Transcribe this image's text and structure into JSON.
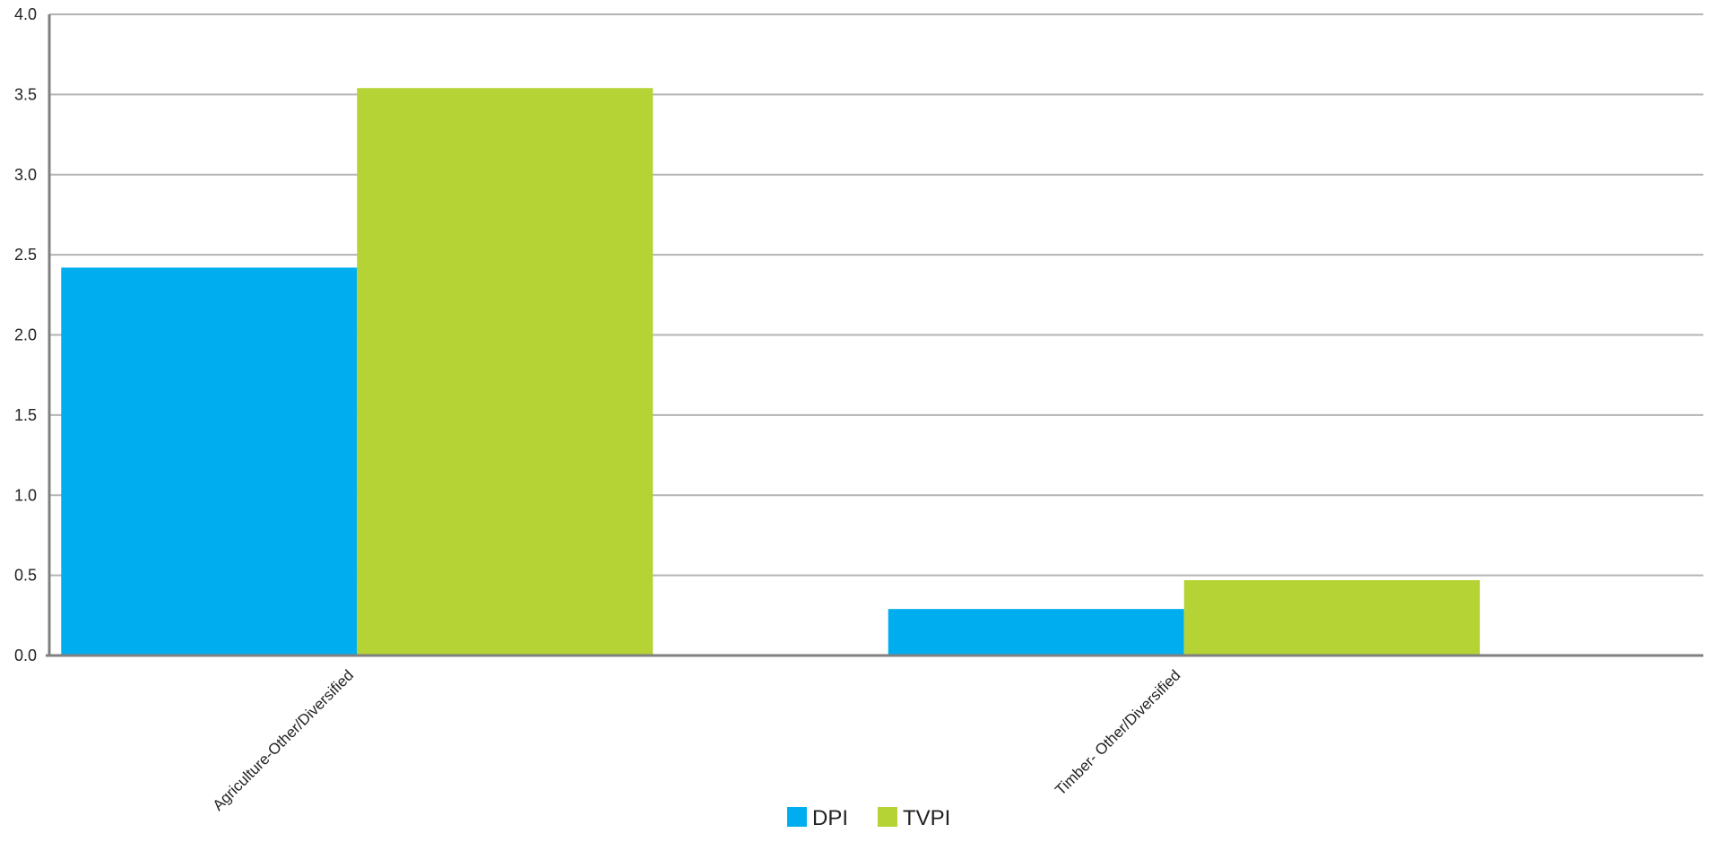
{
  "chart_data": {
    "type": "bar",
    "title": "",
    "xlabel": "",
    "ylabel": "",
    "categories": [
      "Agriculture-Other/Diversified",
      "Timber- Other/Diversified"
    ],
    "series": [
      {
        "name": "DPI",
        "values": [
          2.42,
          0.29
        ],
        "color": "#00aeef"
      },
      {
        "name": "TVPI",
        "values": [
          3.54,
          0.47
        ],
        "color": "#b5d334"
      }
    ],
    "ylim": [
      0,
      4
    ],
    "yticks": [
      0,
      0.5,
      1,
      1.5,
      2,
      2.5,
      3,
      3.5,
      4
    ],
    "ytick_labels": [
      "0.0",
      "0.5",
      "1.0",
      "1.5",
      "2.0",
      "2.5",
      "3.0",
      "3.5",
      "4.0"
    ],
    "grid": true,
    "legend_position": "bottom-center",
    "gridline_color": "#b3b3b3",
    "axis_color": "#808080"
  }
}
